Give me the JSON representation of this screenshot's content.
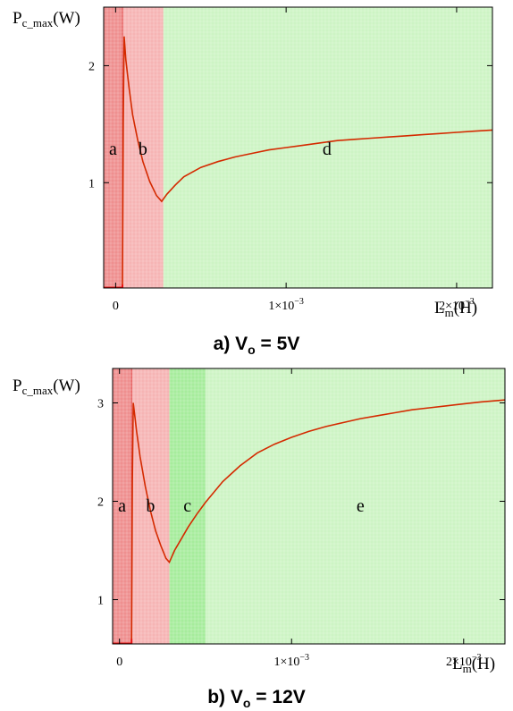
{
  "chart_data": [
    {
      "type": "line",
      "title": "a) V",
      "title_sub": "o",
      "title_rest": " = 5V",
      "ylabel_main": "P",
      "ylabel_sub": "c_max",
      "ylabel_unit": "(W)",
      "xlabel_main": "L",
      "xlabel_sub": "m",
      "xlabel_unit": "(H)",
      "xlim": [
        -7e-05,
        0.00221
      ],
      "ylim": [
        0.1,
        2.5
      ],
      "y_ticks": [
        {
          "value": 1,
          "label": "1"
        },
        {
          "value": 2,
          "label": "2"
        }
      ],
      "x_ticks": [
        {
          "value": 0,
          "label": "0",
          "exp": ""
        },
        {
          "value": 0.001,
          "label": "1×10",
          "exp": "−3"
        },
        {
          "value": 0.002,
          "label": "2×10",
          "exp": "−3"
        }
      ],
      "regions": [
        {
          "label": "a",
          "from": -7e-05,
          "to": 4e-05,
          "color": "#ef8f8f",
          "label_y": 1.27
        },
        {
          "label": "b",
          "from": 4e-05,
          "to": 0.00028,
          "color": "#f6b4b4",
          "label_y": 1.27
        },
        {
          "label": "d",
          "from": 0.00028,
          "to": 0.00221,
          "color": "#cdf4c4",
          "label_y": 1.27,
          "label_x": 0.00124
        }
      ],
      "series": [
        {
          "color": "#d42a00",
          "x": [
            4e-05,
            4.5e-05,
            5e-05,
            6e-05,
            8e-05,
            0.0001,
            0.00013,
            0.00016,
            0.0002,
            0.00024,
            0.00027,
            0.0003,
            0.00035,
            0.0004,
            0.0005,
            0.0006,
            0.0007,
            0.0008,
            0.0009,
            0.001,
            0.0011,
            0.0012,
            0.0013,
            0.0014,
            0.0015,
            0.0016,
            0.0017,
            0.0018,
            0.0019,
            0.002,
            0.0021,
            0.00221
          ],
          "y": [
            0.13,
            1.5,
            2.25,
            2.05,
            1.8,
            1.58,
            1.36,
            1.18,
            1.01,
            0.89,
            0.84,
            0.9,
            0.98,
            1.05,
            1.13,
            1.18,
            1.22,
            1.25,
            1.28,
            1.3,
            1.32,
            1.34,
            1.36,
            1.37,
            1.38,
            1.39,
            1.4,
            1.41,
            1.42,
            1.43,
            1.44,
            1.45
          ]
        }
      ]
    },
    {
      "type": "line",
      "title": "b) V",
      "title_sub": "o",
      "title_rest": " = 12V",
      "ylabel_main": "P",
      "ylabel_sub": "c_max",
      "ylabel_unit": "(W)",
      "xlabel_main": "L",
      "xlabel_sub": "m",
      "xlabel_unit": "(H)",
      "xlim": [
        -4e-05,
        0.00224
      ],
      "ylim": [
        0.55,
        3.35
      ],
      "y_ticks": [
        {
          "value": 1,
          "label": "1"
        },
        {
          "value": 2,
          "label": "2"
        },
        {
          "value": 3,
          "label": "3"
        }
      ],
      "x_ticks": [
        {
          "value": 0,
          "label": "0",
          "exp": ""
        },
        {
          "value": 0.001,
          "label": "1×10",
          "exp": "−3"
        },
        {
          "value": 0.002,
          "label": "2×10",
          "exp": "−3"
        }
      ],
      "regions": [
        {
          "label": "a",
          "from": -4e-05,
          "to": 7e-05,
          "color": "#ef8f8f",
          "label_y": 2.0
        },
        {
          "label": "b",
          "from": 7e-05,
          "to": 0.00029,
          "color": "#f6b4b4",
          "label_y": 2.0
        },
        {
          "label": "c",
          "from": 0.00029,
          "to": 0.0005,
          "color": "#a6ec9c",
          "label_y": 2.0
        },
        {
          "label": "e",
          "from": 0.0005,
          "to": 0.00224,
          "color": "#cdf4c4",
          "label_y": 2.0,
          "label_x": 0.0014
        }
      ],
      "series": [
        {
          "color": "#d42a00",
          "x": [
            7e-05,
            7.5e-05,
            8e-05,
            0.0001,
            0.00012,
            0.00015,
            0.00018,
            0.00021,
            0.00024,
            0.00027,
            0.00029,
            0.00032,
            0.00036,
            0.0004,
            0.00045,
            0.0005,
            0.0006,
            0.0007,
            0.0008,
            0.0009,
            0.001,
            0.0011,
            0.0012,
            0.0013,
            0.0014,
            0.0015,
            0.0016,
            0.0017,
            0.0018,
            0.0019,
            0.002,
            0.0021,
            0.00224
          ],
          "y": [
            0.6,
            2.2,
            3.0,
            2.7,
            2.45,
            2.15,
            1.9,
            1.7,
            1.55,
            1.42,
            1.38,
            1.5,
            1.62,
            1.74,
            1.87,
            1.99,
            2.2,
            2.36,
            2.49,
            2.58,
            2.65,
            2.71,
            2.76,
            2.8,
            2.84,
            2.87,
            2.9,
            2.93,
            2.95,
            2.97,
            2.99,
            3.01,
            3.03
          ]
        }
      ]
    }
  ]
}
